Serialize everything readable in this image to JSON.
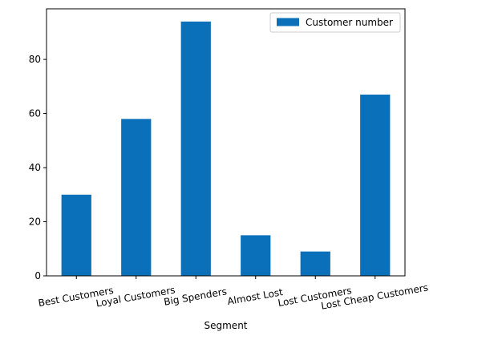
{
  "chart_data": {
    "type": "bar",
    "title": "",
    "xlabel": "Segment",
    "ylabel": "",
    "categories": [
      "Best Customers",
      "Loyal Customers",
      "Big Spenders",
      "Almost Lost",
      "Lost Customers",
      "Lost Cheap Customers"
    ],
    "series": [
      {
        "name": "Customer number",
        "values": [
          30,
          58,
          94,
          15,
          9,
          67
        ]
      }
    ],
    "ylim": [
      0,
      98.7
    ],
    "yticks": [
      0,
      20,
      40,
      60,
      80
    ],
    "grid": false,
    "legend_position": "top-right",
    "bar_color": "#0a70b9"
  }
}
